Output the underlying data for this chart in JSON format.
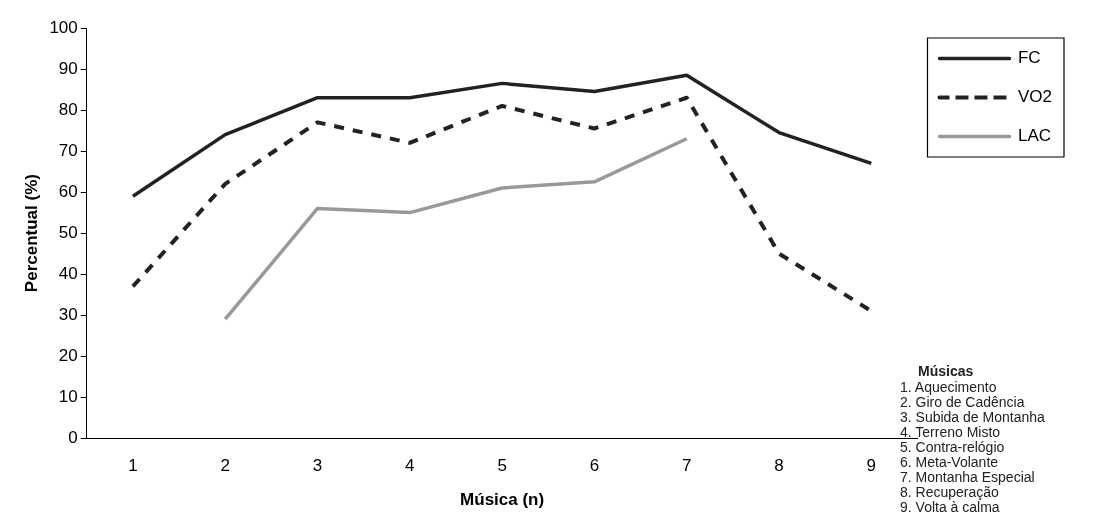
{
  "chart_data": {
    "type": "line",
    "xlabel": "Música (n)",
    "ylabel": "Percentual (%)",
    "categories": [
      "1",
      "2",
      "3",
      "4",
      "5",
      "6",
      "7",
      "8",
      "9"
    ],
    "series": [
      {
        "name": "FC",
        "color": "#222222",
        "line_style": "solid",
        "values": [
          59,
          74,
          83,
          83,
          86.5,
          84.5,
          88.5,
          74.5,
          67
        ]
      },
      {
        "name": "VO2",
        "color": "#222222",
        "line_style": "dashed",
        "values": [
          37,
          62,
          77,
          72,
          81,
          75.5,
          83,
          45,
          31
        ]
      },
      {
        "name": "LAC",
        "color": "#999999",
        "line_style": "solid",
        "values": [
          null,
          29,
          56,
          55,
          61,
          62.5,
          73,
          null,
          null
        ]
      }
    ],
    "ylim": [
      0,
      100
    ],
    "yticks": [
      0,
      10,
      20,
      30,
      40,
      50,
      60,
      70,
      80,
      90,
      100
    ],
    "grid": false,
    "legend": "top right",
    "marker": "none",
    "annotations": [
      "Músicas",
      "1. Aquecimento",
      "2. Giro de Cadência",
      "3. Subida de Montanha",
      "4. Terreno Misto",
      "5. Contra-relógio",
      "6. Meta-Volante",
      "7. Montanha Especial",
      "8. Recuperação",
      "9. Volta à calma"
    ]
  }
}
